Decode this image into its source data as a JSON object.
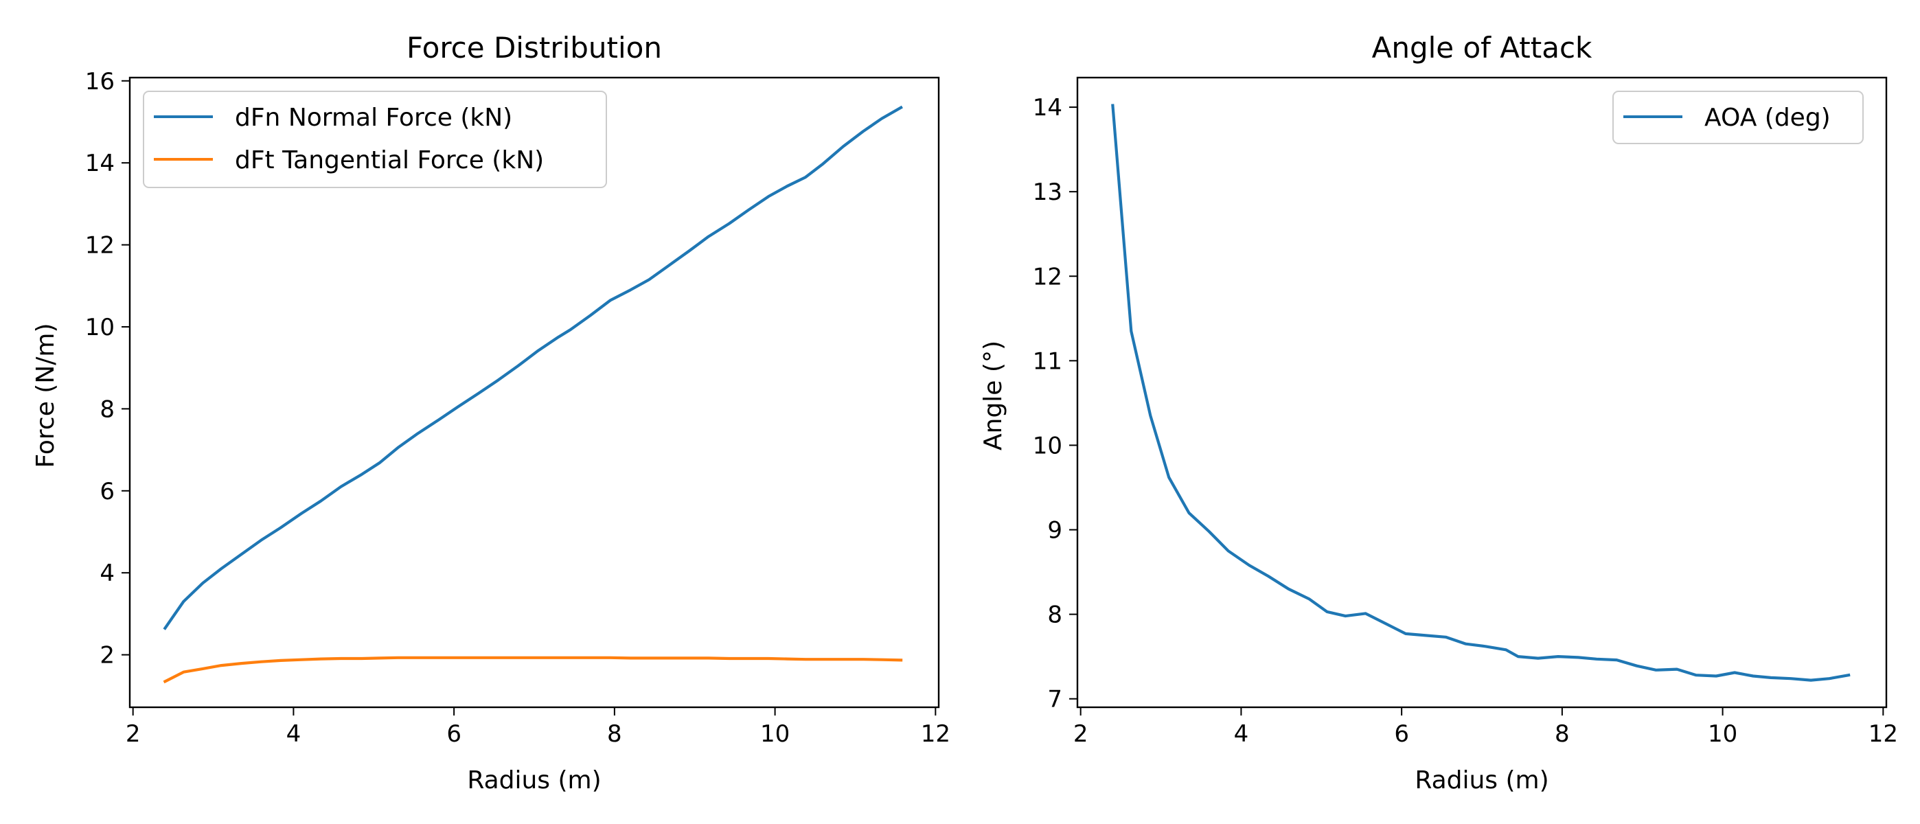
{
  "chart_data": [
    {
      "type": "line",
      "title": "Force Distribution",
      "xlabel": "Radius (m)",
      "ylabel": "Force (N/m)",
      "xlim": [
        1.96,
        12.04
      ],
      "ylim": [
        0.72,
        16.08
      ],
      "xticks": [
        2,
        4,
        6,
        8,
        10,
        12
      ],
      "yticks": [
        2,
        4,
        6,
        8,
        10,
        12,
        14,
        16
      ],
      "grid": false,
      "legend": "upper-left",
      "x": [
        2.4,
        2.63,
        2.87,
        3.1,
        3.35,
        3.6,
        3.84,
        4.1,
        4.34,
        4.59,
        4.85,
        5.07,
        5.3,
        5.55,
        5.8,
        6.05,
        6.3,
        6.55,
        6.8,
        7.05,
        7.3,
        7.45,
        7.7,
        7.95,
        8.2,
        8.43,
        8.68,
        8.93,
        9.17,
        9.43,
        9.67,
        9.92,
        10.15,
        10.38,
        10.6,
        10.85,
        11.1,
        11.33,
        11.57
      ],
      "series": [
        {
          "name": "dFn Normal Force (kN)",
          "color": "#1f77b4",
          "values": [
            2.65,
            3.3,
            3.75,
            4.1,
            4.45,
            4.8,
            5.1,
            5.45,
            5.75,
            6.1,
            6.4,
            6.68,
            7.05,
            7.4,
            7.72,
            8.05,
            8.37,
            8.7,
            9.05,
            9.42,
            9.75,
            9.93,
            10.28,
            10.65,
            10.9,
            11.15,
            11.5,
            11.85,
            12.2,
            12.52,
            12.85,
            13.18,
            13.43,
            13.65,
            13.98,
            14.4,
            14.77,
            15.08,
            15.35
          ]
        },
        {
          "name": "dFt Tangential Force (kN)",
          "color": "#ff7f0e",
          "values": [
            1.35,
            1.58,
            1.66,
            1.74,
            1.79,
            1.83,
            1.86,
            1.88,
            1.9,
            1.91,
            1.91,
            1.92,
            1.93,
            1.93,
            1.93,
            1.93,
            1.93,
            1.93,
            1.93,
            1.93,
            1.93,
            1.93,
            1.93,
            1.93,
            1.92,
            1.92,
            1.92,
            1.92,
            1.92,
            1.91,
            1.91,
            1.91,
            1.9,
            1.89,
            1.89,
            1.89,
            1.89,
            1.88,
            1.87
          ]
        }
      ]
    },
    {
      "type": "line",
      "title": "Angle of Attack",
      "xlabel": "Radius (m)",
      "ylabel": "Angle (°)",
      "xlim": [
        1.96,
        12.04
      ],
      "ylim": [
        6.9,
        14.35
      ],
      "xticks": [
        2,
        4,
        6,
        8,
        10,
        12
      ],
      "yticks": [
        7,
        8,
        9,
        10,
        11,
        12,
        13,
        14
      ],
      "grid": false,
      "legend": "upper-right",
      "x": [
        2.4,
        2.63,
        2.87,
        3.1,
        3.35,
        3.6,
        3.84,
        4.1,
        4.34,
        4.59,
        4.85,
        5.07,
        5.3,
        5.55,
        5.8,
        6.05,
        6.3,
        6.55,
        6.8,
        7.05,
        7.3,
        7.45,
        7.7,
        7.95,
        8.2,
        8.43,
        8.68,
        8.93,
        9.17,
        9.43,
        9.67,
        9.92,
        10.15,
        10.38,
        10.6,
        10.85,
        11.1,
        11.33,
        11.57
      ],
      "series": [
        {
          "name": "AOA (deg)",
          "color": "#1f77b4",
          "values": [
            14.02,
            11.35,
            10.35,
            9.62,
            9.2,
            8.98,
            8.75,
            8.58,
            8.45,
            8.3,
            8.18,
            8.03,
            7.98,
            8.01,
            7.89,
            7.77,
            7.75,
            7.73,
            7.65,
            7.62,
            7.58,
            7.5,
            7.48,
            7.5,
            7.49,
            7.47,
            7.46,
            7.39,
            7.34,
            7.35,
            7.28,
            7.27,
            7.31,
            7.27,
            7.25,
            7.24,
            7.22,
            7.24,
            7.28
          ]
        }
      ]
    }
  ]
}
